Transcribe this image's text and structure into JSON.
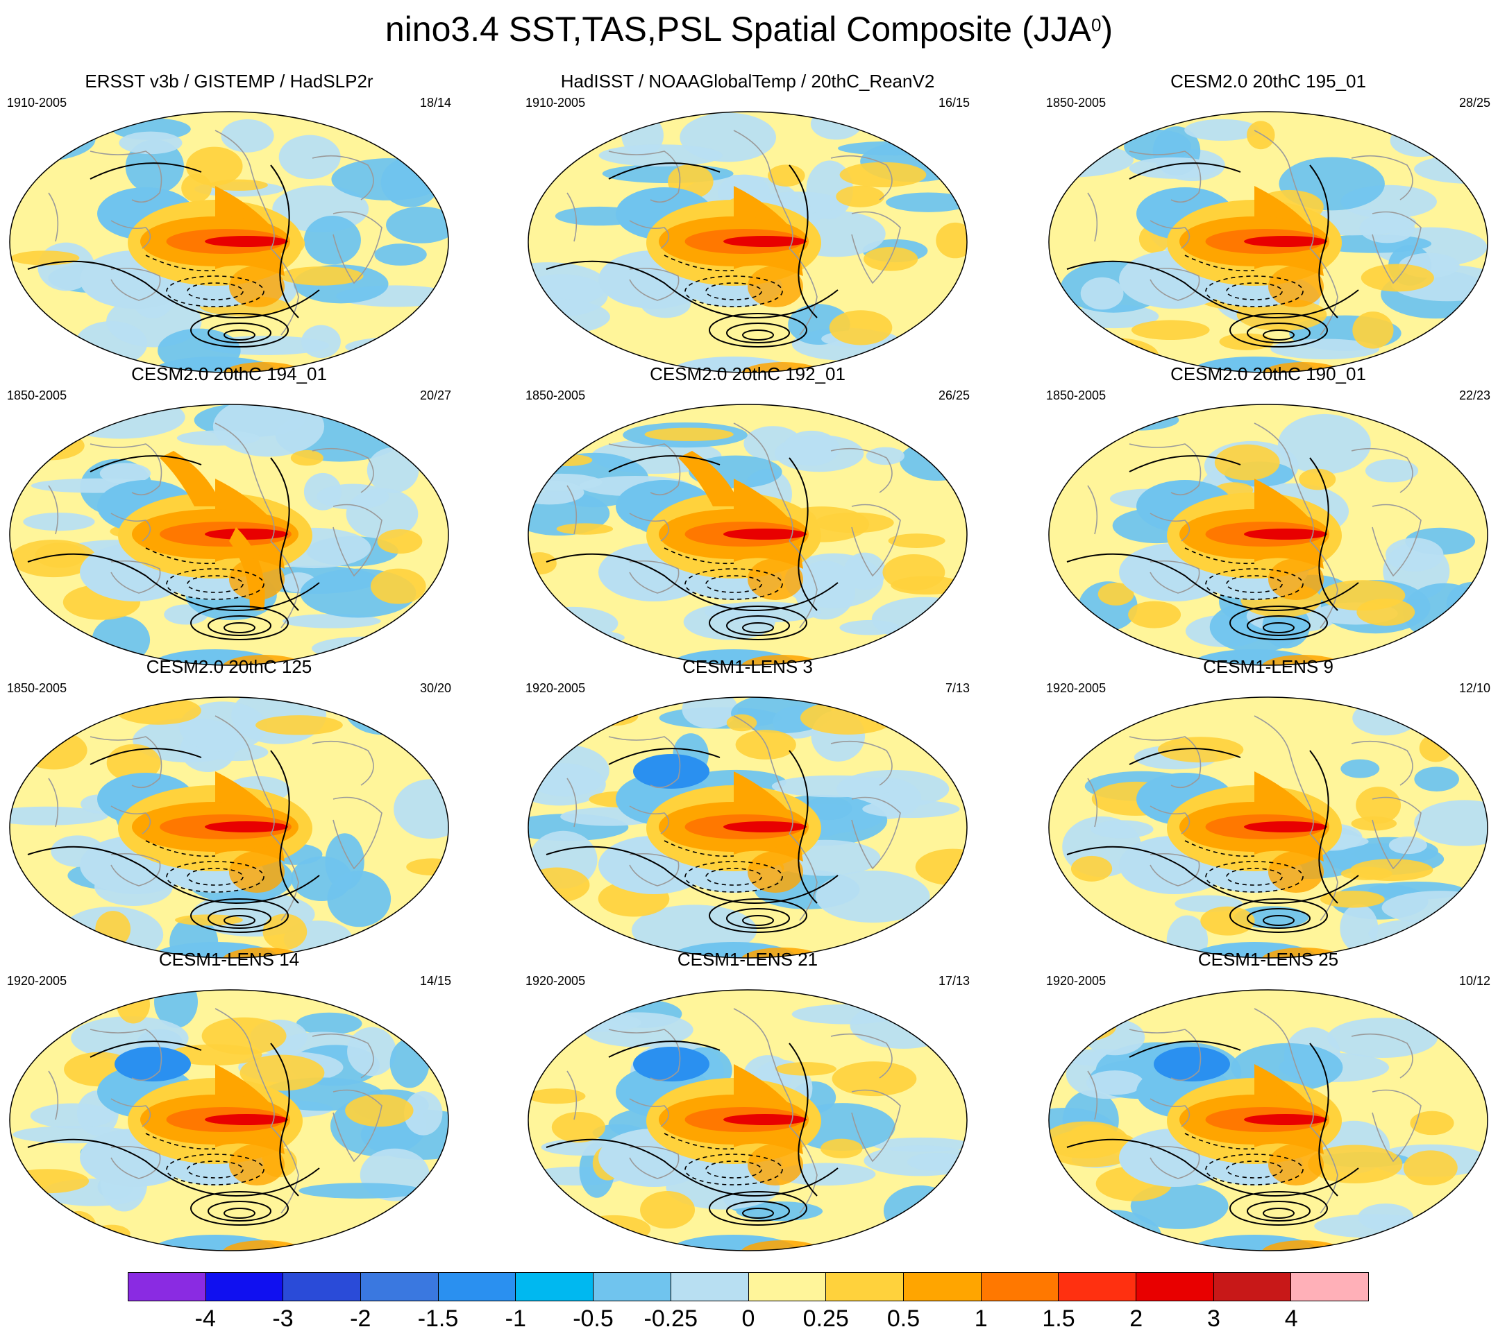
{
  "figure": {
    "title": "nino3.4 SST,TAS,PSL Spatial Composite (JJA",
    "title_sup": "0",
    "title_close": ")"
  },
  "panels": [
    {
      "title": "ERSST v3b / GISTEMP / HadSLP2r",
      "period": "1910-2005",
      "count": "18/14",
      "variant": 0
    },
    {
      "title": "HadISST / NOAAGlobalTemp / 20thC_ReanV2",
      "period": "1910-2005",
      "count": "16/15",
      "variant": 1
    },
    {
      "title": "CESM2.0 20thC 195_01",
      "period": "1850-2005",
      "count": "28/25",
      "variant": 2
    },
    {
      "title": "CESM2.0 20thC 194_01",
      "period": "1850-2005",
      "count": "20/27",
      "variant": 3
    },
    {
      "title": "CESM2.0 20thC 192_01",
      "period": "1850-2005",
      "count": "26/25",
      "variant": 4
    },
    {
      "title": "CESM2.0 20thC 190_01",
      "period": "1850-2005",
      "count": "22/23",
      "variant": 5
    },
    {
      "title": "CESM2.0 20thC 125",
      "period": "1850-2005",
      "count": "30/20",
      "variant": 6
    },
    {
      "title": "CESM1-LENS 3",
      "period": "1920-2005",
      "count": "7/13",
      "variant": 7
    },
    {
      "title": "CESM1-LENS 9",
      "period": "1920-2005",
      "count": "12/10",
      "variant": 8
    },
    {
      "title": "CESM1-LENS 14",
      "period": "1920-2005",
      "count": "14/15",
      "variant": 9
    },
    {
      "title": "CESM1-LENS 21",
      "period": "1920-2005",
      "count": "17/13",
      "variant": 10
    },
    {
      "title": "CESM1-LENS 25",
      "period": "1920-2005",
      "count": "10/12",
      "variant": 11
    }
  ],
  "colorbar": {
    "colors": [
      "#8a2be2",
      "#1010f0",
      "#2a4bd8",
      "#3a78e0",
      "#2a90f0",
      "#00b8f0",
      "#70c4ee",
      "#b8dff2",
      "#fff59a",
      "#ffd23c",
      "#ffa500",
      "#ff7800",
      "#ff3010",
      "#e80000",
      "#c81818",
      "#ffb0b8"
    ],
    "labels": [
      "-4",
      "-3",
      "-2",
      "-1.5",
      "-1",
      "-0.5",
      "-0.25",
      "0",
      "0.25",
      "0.5",
      "1",
      "1.5",
      "2",
      "3",
      "4"
    ]
  },
  "palette": {
    "tropical_core": "#e80000",
    "tongue": "#ff7800",
    "warm": "#ffa500",
    "mild_warm": "#ffd23c",
    "neutral": "#fff59a",
    "light_cool": "#b8dff2",
    "cool": "#70c4ee",
    "strong_cool": "#2a90f0",
    "coast": "#9a9a9a",
    "contour": "#000000"
  }
}
